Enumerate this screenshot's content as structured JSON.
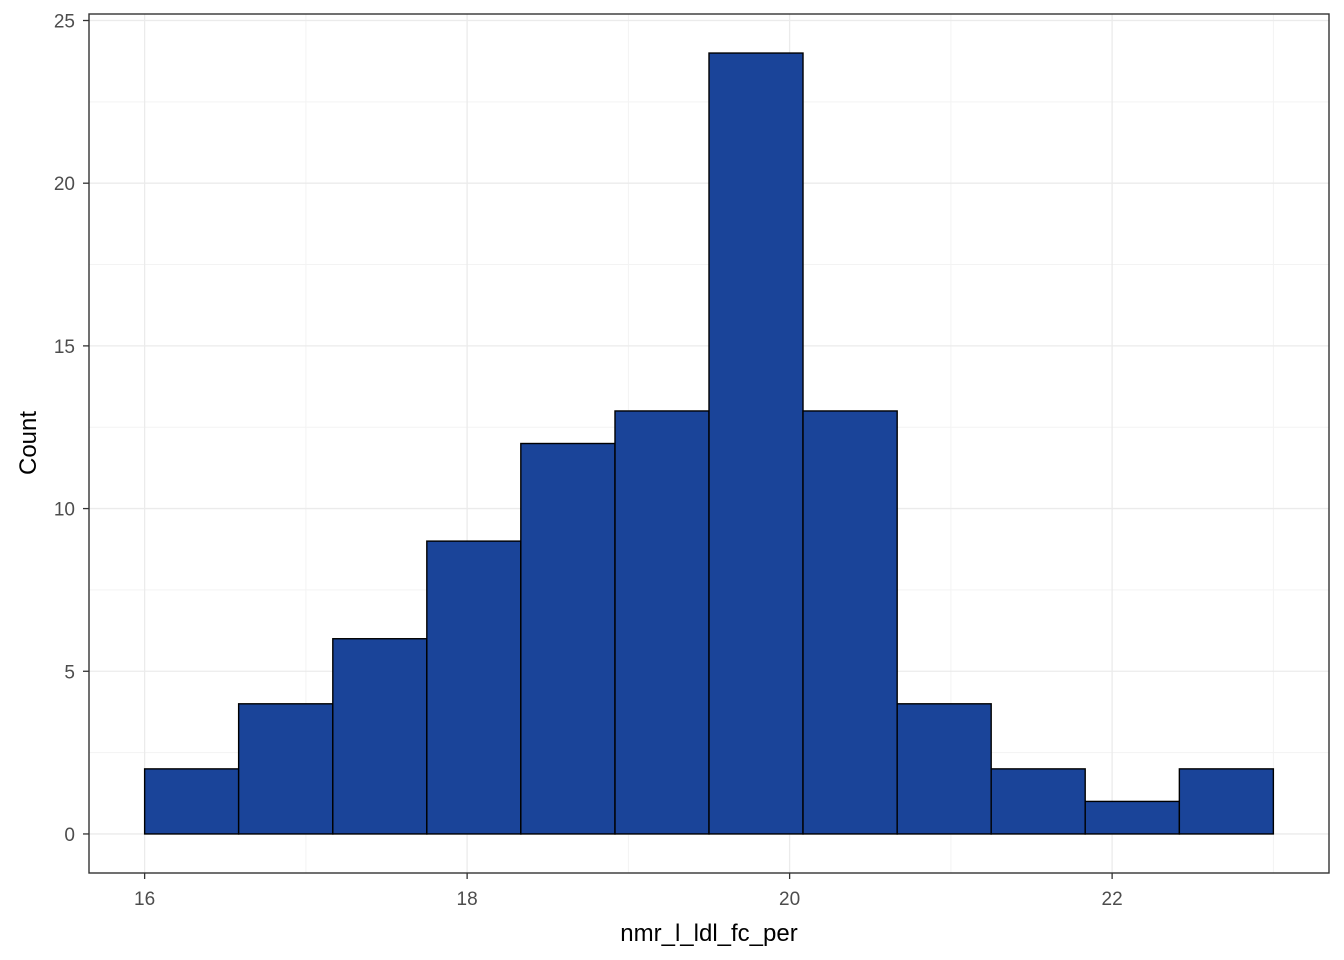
{
  "chart_data": {
    "type": "bar",
    "subtype": "histogram",
    "title": "",
    "xlabel": "nmr_l_ldl_fc_per",
    "ylabel": "Count",
    "bins": [
      {
        "x0": 16.0,
        "x1": 16.583,
        "count": 2
      },
      {
        "x0": 16.583,
        "x1": 17.167,
        "count": 4
      },
      {
        "x0": 17.167,
        "x1": 17.75,
        "count": 6
      },
      {
        "x0": 17.75,
        "x1": 18.333,
        "count": 9
      },
      {
        "x0": 18.333,
        "x1": 18.917,
        "count": 12
      },
      {
        "x0": 18.917,
        "x1": 19.5,
        "count": 13
      },
      {
        "x0": 19.5,
        "x1": 20.083,
        "count": 24
      },
      {
        "x0": 20.083,
        "x1": 20.667,
        "count": 13
      },
      {
        "x0": 20.667,
        "x1": 21.25,
        "count": 4
      },
      {
        "x0": 21.25,
        "x1": 21.833,
        "count": 2
      },
      {
        "x0": 21.833,
        "x1": 22.417,
        "count": 1
      },
      {
        "x0": 22.417,
        "x1": 23.0,
        "count": 2
      }
    ],
    "xlim": [
      15.655,
      23.345
    ],
    "ylim": [
      -1.2,
      25.2
    ],
    "x_ticks": [
      16,
      18,
      20,
      22
    ],
    "x_tick_labels": [
      "16",
      "18",
      "20",
      "22"
    ],
    "y_ticks": [
      0,
      5,
      10,
      15,
      20,
      25
    ],
    "y_tick_labels": [
      "0",
      "5",
      "10",
      "15",
      "20",
      "25"
    ],
    "grid": true,
    "bar_fill": "#1A4499",
    "bar_stroke": "#000000",
    "grid_major_color": "#EBEBEB",
    "grid_minor_color": "#F3F3F3",
    "panel_border_color": "#333333"
  }
}
